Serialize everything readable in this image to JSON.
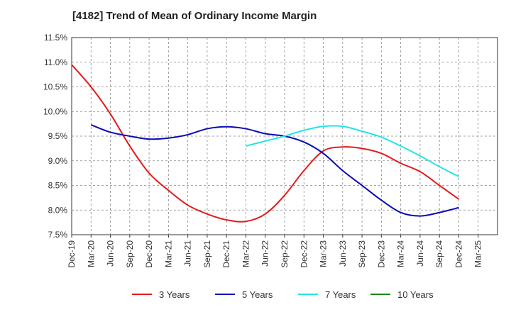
{
  "chart_data": {
    "type": "line",
    "title": "[4182]  Trend of Mean of Ordinary Income Margin",
    "xlabel": "",
    "ylabel": "",
    "x_labels": [
      "Dec-19",
      "Mar-20",
      "Jun-20",
      "Sep-20",
      "Dec-20",
      "Mar-21",
      "Jun-21",
      "Sep-21",
      "Dec-21",
      "Mar-22",
      "Jun-22",
      "Sep-22",
      "Dec-22",
      "Mar-23",
      "Jun-23",
      "Sep-23",
      "Dec-23",
      "Mar-24",
      "Jun-24",
      "Sep-24",
      "Dec-24",
      "Mar-25"
    ],
    "y_ticks": [
      "7.5%",
      "8.0%",
      "8.5%",
      "9.0%",
      "9.5%",
      "10.0%",
      "10.5%",
      "11.0%",
      "11.5%"
    ],
    "ylim": [
      7.5,
      11.5
    ],
    "grid": true,
    "legend_position": "bottom",
    "series": [
      {
        "name": "3 Years",
        "color": "#e41a1c",
        "values": [
          10.95,
          10.5,
          9.95,
          9.3,
          8.75,
          8.4,
          8.1,
          7.92,
          7.8,
          7.77,
          7.92,
          8.3,
          8.8,
          9.2,
          9.28,
          9.25,
          9.15,
          8.95,
          8.78,
          8.5,
          8.22,
          null
        ]
      },
      {
        "name": "5 Years",
        "color": "#0a0ab4",
        "values": [
          null,
          9.73,
          9.58,
          9.5,
          9.44,
          9.46,
          9.53,
          9.65,
          9.69,
          9.65,
          9.55,
          9.5,
          9.38,
          9.15,
          8.8,
          8.5,
          8.2,
          7.95,
          7.88,
          7.95,
          8.05,
          null
        ]
      },
      {
        "name": "7 Years",
        "color": "#22e5e5",
        "values": [
          null,
          null,
          null,
          null,
          null,
          null,
          null,
          null,
          null,
          9.3,
          9.4,
          9.5,
          9.62,
          9.7,
          9.7,
          9.6,
          9.48,
          9.3,
          9.1,
          8.88,
          8.68,
          null
        ]
      },
      {
        "name": "10 Years",
        "color": "#1a8a1a",
        "values": [
          null,
          null,
          null,
          null,
          null,
          null,
          null,
          null,
          null,
          null,
          null,
          null,
          null,
          null,
          null,
          null,
          null,
          null,
          null,
          null,
          null,
          null
        ]
      }
    ]
  }
}
